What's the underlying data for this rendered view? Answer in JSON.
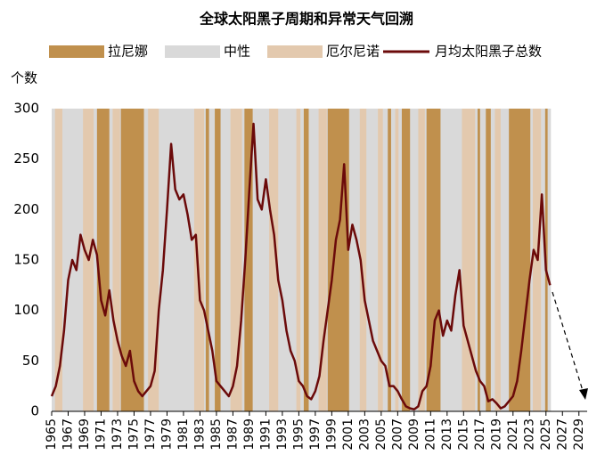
{
  "chart_data": {
    "type": "line",
    "title": "全球太阳黑子周期和异常天气回溯",
    "y_label": "个数",
    "xlim": [
      1965,
      2030
    ],
    "ylim": [
      0,
      300
    ],
    "xticks": [
      1965,
      1967,
      1969,
      1971,
      1973,
      1975,
      1977,
      1979,
      1981,
      1983,
      1985,
      1987,
      1989,
      1991,
      1993,
      1995,
      1997,
      1999,
      2001,
      2003,
      2005,
      2007,
      2009,
      2011,
      2013,
      2015,
      2017,
      2019,
      2021,
      2023,
      2025,
      2027,
      2029
    ],
    "yticks": [
      0,
      50,
      100,
      150,
      200,
      250,
      300
    ],
    "x": [
      1965.0,
      1965.5,
      1966.0,
      1966.5,
      1967.0,
      1967.5,
      1968.0,
      1968.5,
      1969.0,
      1969.5,
      1970.0,
      1970.5,
      1971.0,
      1971.5,
      1972.0,
      1972.5,
      1973.0,
      1973.5,
      1974.0,
      1974.5,
      1975.0,
      1975.5,
      1976.0,
      1976.5,
      1977.0,
      1977.5,
      1978.0,
      1978.5,
      1979.0,
      1979.5,
      1980.0,
      1980.5,
      1981.0,
      1981.5,
      1982.0,
      1982.5,
      1983.0,
      1983.5,
      1984.0,
      1984.5,
      1985.0,
      1985.5,
      1986.0,
      1986.5,
      1987.0,
      1987.5,
      1988.0,
      1988.5,
      1989.0,
      1989.5,
      1990.0,
      1990.5,
      1991.0,
      1991.5,
      1992.0,
      1992.5,
      1993.0,
      1993.5,
      1994.0,
      1994.5,
      1995.0,
      1995.5,
      1996.0,
      1996.5,
      1997.0,
      1997.5,
      1998.0,
      1998.5,
      1999.0,
      1999.5,
      2000.0,
      2000.5,
      2001.0,
      2001.5,
      2002.0,
      2002.5,
      2003.0,
      2003.5,
      2004.0,
      2004.5,
      2005.0,
      2005.5,
      2006.0,
      2006.5,
      2007.0,
      2007.5,
      2008.0,
      2008.5,
      2009.0,
      2009.5,
      2010.0,
      2010.5,
      2011.0,
      2011.5,
      2012.0,
      2012.5,
      2013.0,
      2013.5,
      2014.0,
      2014.5,
      2015.0,
      2015.5,
      2016.0,
      2016.5,
      2017.0,
      2017.5,
      2018.0,
      2018.5,
      2019.0,
      2019.5,
      2020.0,
      2020.5,
      2021.0,
      2021.5,
      2022.0,
      2022.5,
      2023.0,
      2023.5,
      2024.0,
      2024.5,
      2025.0,
      2025.5
    ],
    "series": [
      {
        "name": "拉尼娜",
        "color": "#c0904d",
        "periods": [
          [
            1970.5,
            1972.0
          ],
          [
            1973.4,
            1976.2
          ],
          [
            1983.7,
            1984.1
          ],
          [
            1984.8,
            1985.5
          ],
          [
            1988.4,
            1989.4
          ],
          [
            1995.6,
            1996.2
          ],
          [
            1998.5,
            2001.1
          ],
          [
            2005.8,
            2006.2
          ],
          [
            2007.5,
            2008.5
          ],
          [
            2010.5,
            2012.2
          ],
          [
            2016.7,
            2017.0
          ],
          [
            2017.7,
            2018.3
          ],
          [
            2020.5,
            2023.1
          ],
          [
            2024.9,
            2025.2
          ]
        ]
      },
      {
        "name": "中性",
        "color": "#d9d9d9",
        "periods": [
          [
            1965,
            2025.6
          ]
        ]
      },
      {
        "name": "厄尔尼诺",
        "color": "#e3c9ae",
        "periods": [
          [
            1965.4,
            1966.3
          ],
          [
            1968.8,
            1970.1
          ],
          [
            1972.4,
            1973.3
          ],
          [
            1976.7,
            1978.0
          ],
          [
            1982.3,
            1983.5
          ],
          [
            1986.7,
            1988.1
          ],
          [
            1991.4,
            1992.5
          ],
          [
            1994.7,
            1995.2
          ],
          [
            1997.4,
            1998.4
          ],
          [
            2002.4,
            2003.2
          ],
          [
            2004.6,
            2005.2
          ],
          [
            2006.7,
            2007.1
          ],
          [
            2009.5,
            2010.3
          ],
          [
            2014.8,
            2016.4
          ],
          [
            2018.8,
            2019.5
          ],
          [
            2023.4,
            2024.4
          ]
        ]
      },
      {
        "name": "月均太阳黑子总数",
        "color": "#6b0a0a",
        "values": [
          15,
          25,
          45,
          80,
          130,
          150,
          140,
          175,
          160,
          150,
          170,
          155,
          110,
          95,
          120,
          90,
          70,
          55,
          45,
          60,
          30,
          20,
          15,
          20,
          25,
          40,
          100,
          140,
          200,
          265,
          220,
          210,
          215,
          195,
          170,
          175,
          110,
          100,
          80,
          60,
          30,
          25,
          20,
          15,
          25,
          45,
          90,
          150,
          220,
          285,
          210,
          200,
          230,
          200,
          175,
          130,
          110,
          80,
          60,
          50,
          30,
          25,
          15,
          12,
          20,
          35,
          70,
          100,
          130,
          170,
          190,
          245,
          160,
          185,
          170,
          150,
          110,
          90,
          70,
          60,
          50,
          45,
          25,
          25,
          20,
          12,
          5,
          3,
          2,
          5,
          20,
          25,
          45,
          90,
          100,
          75,
          90,
          80,
          115,
          140,
          85,
          70,
          55,
          40,
          30,
          25,
          10,
          12,
          8,
          3,
          5,
          10,
          15,
          30,
          60,
          95,
          130,
          160,
          150,
          215,
          140,
          125
        ]
      }
    ]
  }
}
